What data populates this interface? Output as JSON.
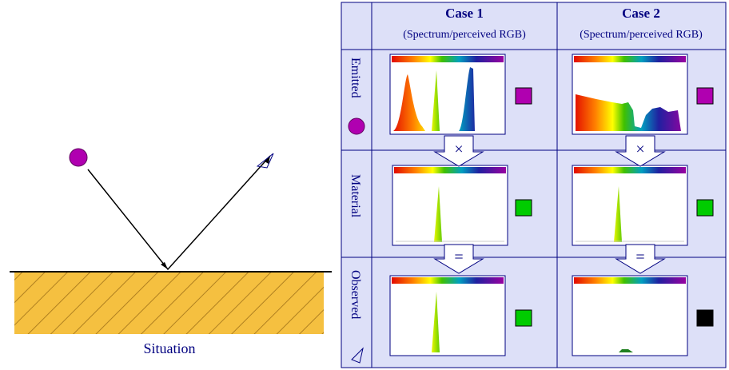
{
  "situation": {
    "label": "Situation"
  },
  "table": {
    "columns": [
      {
        "title": "Case 1",
        "subtitle": "(Spectrum/perceived RGB)"
      },
      {
        "title": "Case 2",
        "subtitle": "(Spectrum/perceived RGB)"
      }
    ],
    "rows": [
      {
        "label": "Emitted"
      },
      {
        "label": "Material"
      },
      {
        "label": "Observed"
      }
    ],
    "operators": [
      "×",
      "="
    ]
  }
}
